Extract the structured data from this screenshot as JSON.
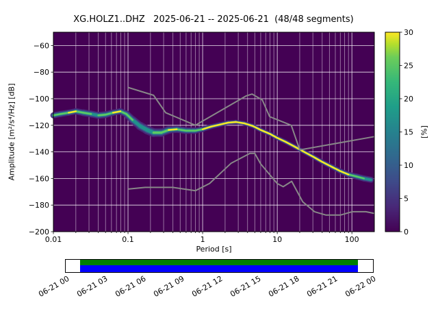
{
  "figure": {
    "title": "XG.HOLZ1..DHZ   2025-06-21 -- 2025-06-21  (48/48 segments)"
  },
  "chart_data": {
    "type": "heatmap",
    "subtype": "probabilistic-power-spectral-density",
    "title": "XG.HOLZ1..DHZ   2025-06-21 -- 2025-06-21  (48/48 segments)",
    "station": "XG.HOLZ1..DHZ",
    "date_range": "2025-06-21 -- 2025-06-21",
    "segments": "48/48 segments",
    "xlabel": "Period [s]",
    "ylabel": "Amplitude [m²/s⁴/Hz] [dB]",
    "x_scale": "log",
    "xlim": [
      0.01,
      200
    ],
    "ylim": [
      -200,
      -50
    ],
    "grid": true,
    "background_color": "#440154",
    "grid_color": "#ffffff",
    "x_ticks": {
      "values": [
        0.01,
        0.1,
        1,
        10,
        100
      ],
      "labels": [
        "0.01",
        "0.1",
        "1",
        "10",
        "100"
      ]
    },
    "y_ticks": {
      "values": [
        -200,
        -180,
        -160,
        -140,
        -120,
        -100,
        -80,
        -60
      ],
      "labels": [
        "−200",
        "−180",
        "−160",
        "−140",
        "−120",
        "−100",
        "−80",
        "−60"
      ]
    },
    "colorbar": {
      "label": "[%]",
      "min": 0,
      "max": 30,
      "ticks": [
        0,
        5,
        10,
        15,
        20,
        25,
        30
      ],
      "colormap": "viridis",
      "stops": [
        [
          0,
          "#440154"
        ],
        [
          0.125,
          "#482878"
        ],
        [
          0.25,
          "#3e4a89"
        ],
        [
          0.375,
          "#31688e"
        ],
        [
          0.5,
          "#26828e"
        ],
        [
          0.625,
          "#1f9e89"
        ],
        [
          0.75,
          "#35b779"
        ],
        [
          0.875,
          "#6dcd59"
        ],
        [
          0.94,
          "#b4de2c"
        ],
        [
          1,
          "#fde725"
        ]
      ]
    },
    "psd_mode_curve": {
      "description": "Most-probable PSD ridge: [period_s, amplitude_dB, spread_dB, peak_color_key]",
      "color_keys": {
        "y": "#fde725",
        "g": "#5ec962",
        "t": "#21918c"
      },
      "halo_colors": [
        "#482878",
        "#3b528b",
        "#21918c"
      ],
      "points": [
        [
          0.01,
          -112.5,
          4.6,
          "g"
        ],
        [
          0.0125,
          -111.5,
          4.6,
          "g"
        ],
        [
          0.016,
          -110.5,
          4.6,
          "y"
        ],
        [
          0.02,
          -109.5,
          4.6,
          "g"
        ],
        [
          0.025,
          -110.5,
          5.2,
          "g"
        ],
        [
          0.032,
          -111.5,
          5.2,
          "t"
        ],
        [
          0.04,
          -112.5,
          5.2,
          "g"
        ],
        [
          0.05,
          -112.0,
          5.2,
          "g"
        ],
        [
          0.063,
          -110.5,
          4.6,
          "y"
        ],
        [
          0.079,
          -109.5,
          4.6,
          "g"
        ],
        [
          0.095,
          -111.5,
          5.2,
          "g"
        ],
        [
          0.115,
          -116.0,
          5.7,
          "t"
        ],
        [
          0.145,
          -120.5,
          6.2,
          "t"
        ],
        [
          0.18,
          -123.5,
          6.7,
          "t"
        ],
        [
          0.22,
          -125.5,
          6.7,
          "g"
        ],
        [
          0.28,
          -125.5,
          6.2,
          "g"
        ],
        [
          0.35,
          -123.5,
          5.7,
          "y"
        ],
        [
          0.45,
          -123.0,
          5.2,
          "g"
        ],
        [
          0.6,
          -124.0,
          5.2,
          "g"
        ],
        [
          0.8,
          -124.0,
          4.6,
          "g"
        ],
        [
          1.0,
          -123.0,
          4.1,
          "y"
        ],
        [
          1.3,
          -121.0,
          3.6,
          "y"
        ],
        [
          1.7,
          -119.5,
          3.6,
          "y"
        ],
        [
          2.2,
          -118.0,
          3.3,
          "y"
        ],
        [
          2.8,
          -117.5,
          3.3,
          "y"
        ],
        [
          3.6,
          -118.5,
          3.3,
          "y"
        ],
        [
          4.7,
          -120.5,
          3.3,
          "y"
        ],
        [
          6.0,
          -123.5,
          3.3,
          "y"
        ],
        [
          8.0,
          -126.5,
          3.3,
          "y"
        ],
        [
          10,
          -129.5,
          3.3,
          "y"
        ],
        [
          13,
          -132.5,
          3.3,
          "y"
        ],
        [
          17,
          -136.0,
          3.3,
          "y"
        ],
        [
          22,
          -139.5,
          3.3,
          "y"
        ],
        [
          30,
          -143.5,
          3.3,
          "y"
        ],
        [
          40,
          -147.5,
          3.6,
          "y"
        ],
        [
          55,
          -151.5,
          3.6,
          "y"
        ],
        [
          70,
          -154.5,
          3.9,
          "y"
        ],
        [
          90,
          -157.0,
          4.1,
          "g"
        ],
        [
          115,
          -158.5,
          4.6,
          "g"
        ],
        [
          145,
          -160.0,
          4.6,
          "t"
        ],
        [
          180,
          -161.0,
          4.6,
          "t"
        ]
      ]
    },
    "noise_models": {
      "color": "#888888",
      "nhnm": [
        [
          0.1,
          -91.5
        ],
        [
          0.22,
          -97.4
        ],
        [
          0.32,
          -110.5
        ],
        [
          0.8,
          -120.0
        ],
        [
          3.8,
          -98.0
        ],
        [
          4.6,
          -96.5
        ],
        [
          6.3,
          -101.0
        ],
        [
          7.9,
          -113.5
        ],
        [
          15.4,
          -120.0
        ],
        [
          20.0,
          -138.5
        ],
        [
          200.0,
          -128.5
        ]
      ],
      "nlnm": [
        [
          0.1,
          -168.0
        ],
        [
          0.17,
          -166.7
        ],
        [
          0.4,
          -166.7
        ],
        [
          0.8,
          -169.2
        ],
        [
          1.24,
          -163.7
        ],
        [
          2.4,
          -148.6
        ],
        [
          4.3,
          -141.1
        ],
        [
          5.0,
          -141.1
        ],
        [
          6.0,
          -149.0
        ],
        [
          10.0,
          -163.8
        ],
        [
          12.0,
          -166.2
        ],
        [
          15.6,
          -162.1
        ],
        [
          21.9,
          -177.5
        ],
        [
          31.6,
          -185.0
        ],
        [
          45.0,
          -187.5
        ],
        [
          70.0,
          -187.5
        ],
        [
          101.0,
          -185.0
        ],
        [
          154.0,
          -185.0
        ],
        [
          200.0,
          -186.3
        ]
      ]
    }
  },
  "timeline": {
    "labels": [
      "06-21 00",
      "06-21 03",
      "06-21 06",
      "06-21 09",
      "06-21 12",
      "06-21 15",
      "06-21 18",
      "06-21 21",
      "06-22 00"
    ],
    "coverage_color": "#008000",
    "trace_color": "#0000ff",
    "bar_border": "#000000"
  }
}
